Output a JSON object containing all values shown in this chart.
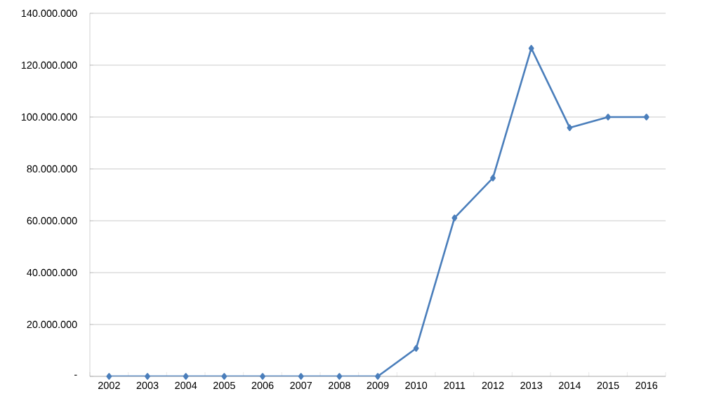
{
  "chart_data": {
    "type": "line",
    "categories": [
      "2002",
      "2003",
      "2004",
      "2005",
      "2006",
      "2007",
      "2008",
      "2009",
      "2010",
      "2011",
      "2012",
      "2013",
      "2014",
      "2015",
      "2016"
    ],
    "series": [
      {
        "color": "#4a7ebb",
        "values": [
          0,
          0,
          0,
          0,
          0,
          0,
          0,
          0,
          10800000,
          61100000,
          76500000,
          126500000,
          95900000,
          100000000,
          100000000
        ]
      }
    ],
    "ylim": [
      0,
      140000000
    ],
    "yticks": [
      {
        "value": 0,
        "label": "-"
      },
      {
        "value": 20000000,
        "label": "20.000.000"
      },
      {
        "value": 40000000,
        "label": "40.000.000"
      },
      {
        "value": 60000000,
        "label": "60.000.000"
      },
      {
        "value": 80000000,
        "label": "80.000.000"
      },
      {
        "value": 100000000,
        "label": "100.000.000"
      },
      {
        "value": 120000000,
        "label": "120.000.000"
      },
      {
        "value": 140000000,
        "label": "140.000.000"
      }
    ],
    "grid": "y",
    "marker": "diamond",
    "line_style": "solid"
  }
}
